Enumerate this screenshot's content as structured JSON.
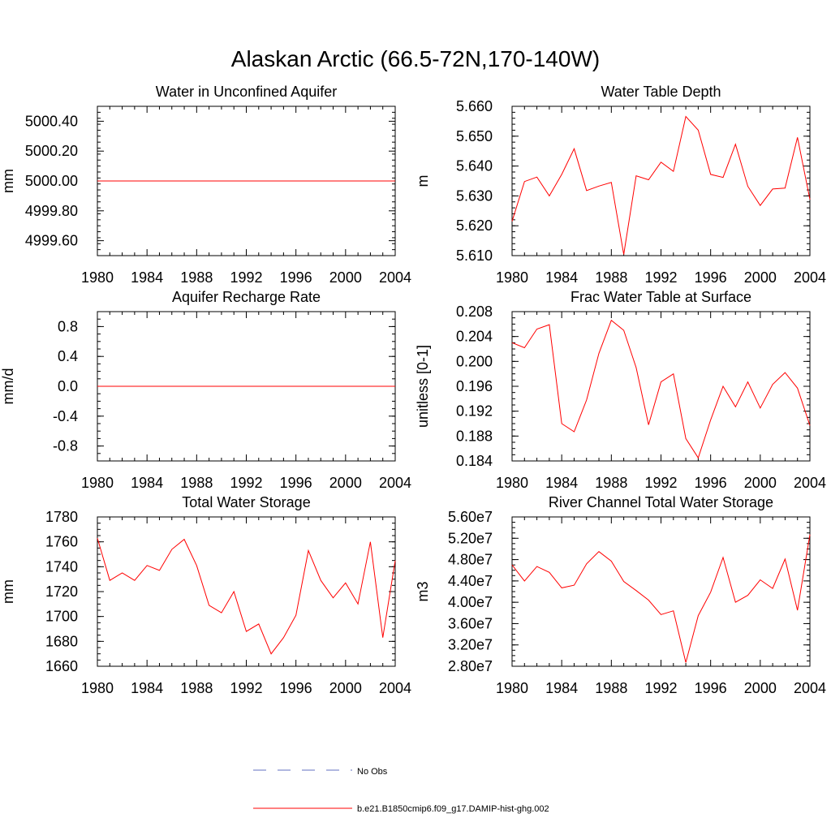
{
  "figure": {
    "title": "Alaskan Arctic (66.5-72N,170-140W)"
  },
  "legend": {
    "entries": [
      {
        "label": "No Obs",
        "color": "#6070c0",
        "style": "dashed"
      },
      {
        "label": "b.e21.B1850cmip6.f09_g17.DAMIP-hist-ghg.002",
        "color": "#ff0000",
        "style": "solid"
      }
    ]
  },
  "chart_data": [
    {
      "type": "line",
      "title": "Water in Unconfined Aquifer",
      "xlabel": "",
      "ylabel": "mm",
      "xlim": [
        1980,
        2004
      ],
      "ylim": [
        4999.5,
        5000.5
      ],
      "xticks": [
        1980,
        1984,
        1988,
        1992,
        1996,
        2000,
        2004
      ],
      "xtick_labels": [
        "1980",
        "1984",
        "1988",
        "1992",
        "1996",
        "2000",
        "2004"
      ],
      "yticks": [
        4999.6,
        4999.8,
        5000.0,
        5000.2,
        5000.4
      ],
      "ytick_labels": [
        "4999.60",
        "4999.80",
        "5000.00",
        "5000.20",
        "5000.40"
      ],
      "yminor_step": 0.04,
      "grid": false,
      "series": [
        {
          "color": "#ff0000",
          "x": [
            1980,
            2004
          ],
          "values": [
            5000.0,
            5000.0
          ]
        }
      ]
    },
    {
      "type": "line",
      "title": "Water Table Depth",
      "xlabel": "",
      "ylabel": "m",
      "xlim": [
        1980,
        2004
      ],
      "ylim": [
        5.61,
        5.66
      ],
      "xticks": [
        1980,
        1984,
        1988,
        1992,
        1996,
        2000,
        2004
      ],
      "xtick_labels": [
        "1980",
        "1984",
        "1988",
        "1992",
        "1996",
        "2000",
        "2004"
      ],
      "yticks": [
        5.61,
        5.62,
        5.63,
        5.64,
        5.65,
        5.66
      ],
      "ytick_labels": [
        "5.610",
        "5.620",
        "5.630",
        "5.640",
        "5.650",
        "5.660"
      ],
      "yminor_step": 0.002,
      "grid": false,
      "series": [
        {
          "color": "#ff0000",
          "x": [
            1980,
            1981,
            1982,
            1983,
            1984,
            1985,
            1986,
            1987,
            1988,
            1989,
            1990,
            1991,
            1992,
            1993,
            1994,
            1995,
            1996,
            1997,
            1998,
            1999,
            2000,
            2001,
            2002,
            2003,
            2004
          ],
          "values": [
            5.6215,
            5.6348,
            5.6363,
            5.63,
            5.6372,
            5.6458,
            5.6318,
            5.6333,
            5.6345,
            5.6104,
            5.6367,
            5.6354,
            5.6413,
            5.6382,
            5.6566,
            5.652,
            5.6372,
            5.6362,
            5.6473,
            5.6332,
            5.6268,
            5.6323,
            5.6326,
            5.6496,
            5.6288
          ]
        }
      ]
    },
    {
      "type": "line",
      "title": "Aquifer Recharge Rate",
      "xlabel": "",
      "ylabel": "mm/d",
      "xlim": [
        1980,
        2004
      ],
      "ylim": [
        -1.0,
        1.0
      ],
      "xticks": [
        1980,
        1984,
        1988,
        1992,
        1996,
        2000,
        2004
      ],
      "xtick_labels": [
        "1980",
        "1984",
        "1988",
        "1992",
        "1996",
        "2000",
        "2004"
      ],
      "yticks": [
        -0.8,
        -0.4,
        0.0,
        0.4,
        0.8
      ],
      "ytick_labels": [
        "-0.8",
        "-0.4",
        "0.0",
        "0.4",
        "0.8"
      ],
      "yminor_step": 0.1,
      "grid": false,
      "series": [
        {
          "color": "#ff0000",
          "x": [
            1980,
            2004
          ],
          "values": [
            0.0,
            0.0
          ]
        }
      ]
    },
    {
      "type": "line",
      "title": "Frac Water Table at Surface",
      "xlabel": "",
      "ylabel": "unitless [0-1]",
      "xlim": [
        1980,
        2004
      ],
      "ylim": [
        0.184,
        0.208
      ],
      "xticks": [
        1980,
        1984,
        1988,
        1992,
        1996,
        2000,
        2004
      ],
      "xtick_labels": [
        "1980",
        "1984",
        "1988",
        "1992",
        "1996",
        "2000",
        "2004"
      ],
      "yticks": [
        0.184,
        0.188,
        0.192,
        0.196,
        0.2,
        0.204,
        0.208
      ],
      "ytick_labels": [
        "0.184",
        "0.188",
        "0.192",
        "0.196",
        "0.200",
        "0.204",
        "0.208"
      ],
      "yminor_step": 0.001,
      "grid": false,
      "series": [
        {
          "color": "#ff0000",
          "x": [
            1980,
            1981,
            1982,
            1983,
            1984,
            1985,
            1986,
            1987,
            1988,
            1989,
            1990,
            1991,
            1992,
            1993,
            1994,
            1995,
            1996,
            1997,
            1998,
            1999,
            2000,
            2001,
            2002,
            2003,
            2004
          ],
          "values": [
            0.203,
            0.2022,
            0.2052,
            0.2059,
            0.19,
            0.1887,
            0.1938,
            0.2013,
            0.2066,
            0.205,
            0.199,
            0.1898,
            0.1967,
            0.198,
            0.1876,
            0.1845,
            0.1906,
            0.196,
            0.1927,
            0.1967,
            0.1925,
            0.1963,
            0.1982,
            0.1957,
            0.1897
          ]
        }
      ]
    },
    {
      "type": "line",
      "title": "Total Water Storage",
      "xlabel": "",
      "ylabel": "mm",
      "xlim": [
        1980,
        2004
      ],
      "ylim": [
        1660,
        1780
      ],
      "xticks": [
        1980,
        1984,
        1988,
        1992,
        1996,
        2000,
        2004
      ],
      "xtick_labels": [
        "1980",
        "1984",
        "1988",
        "1992",
        "1996",
        "2000",
        "2004"
      ],
      "yticks": [
        1660,
        1680,
        1700,
        1720,
        1740,
        1760,
        1780
      ],
      "ytick_labels": [
        "1660",
        "1680",
        "1700",
        "1720",
        "1740",
        "1760",
        "1780"
      ],
      "yminor_step": 5,
      "grid": false,
      "series": [
        {
          "color": "#ff0000",
          "x": [
            1980,
            1981,
            1982,
            1983,
            1984,
            1985,
            1986,
            1987,
            1988,
            1989,
            1990,
            1991,
            1992,
            1993,
            1994,
            1995,
            1996,
            1997,
            1998,
            1999,
            2000,
            2001,
            2002,
            2003,
            2004
          ],
          "values": [
            1763,
            1729,
            1735,
            1729,
            1741,
            1737,
            1754,
            1762,
            1741,
            1709,
            1703,
            1720,
            1688,
            1694,
            1670,
            1683,
            1701,
            1753,
            1729,
            1715,
            1727,
            1710,
            1760,
            1683,
            1745
          ]
        }
      ]
    },
    {
      "type": "line",
      "title": "River Channel Total Water Storage",
      "xlabel": "",
      "ylabel": "m3",
      "xlim": [
        1980,
        2004
      ],
      "ylim": [
        28000000,
        56000000
      ],
      "xticks": [
        1980,
        1984,
        1988,
        1992,
        1996,
        2000,
        2004
      ],
      "xtick_labels": [
        "1980",
        "1984",
        "1988",
        "1992",
        "1996",
        "2000",
        "2004"
      ],
      "yticks": [
        28000000,
        32000000,
        36000000,
        40000000,
        44000000,
        48000000,
        52000000,
        56000000
      ],
      "ytick_labels": [
        "2.80e7",
        "3.20e7",
        "3.60e7",
        "4.00e7",
        "4.40e7",
        "4.80e7",
        "5.20e7",
        "5.60e7"
      ],
      "yminor_step": 1000000,
      "grid": false,
      "series": [
        {
          "color": "#ff0000",
          "x": [
            1980,
            1981,
            1982,
            1983,
            1984,
            1985,
            1986,
            1987,
            1988,
            1989,
            1990,
            1991,
            1992,
            1993,
            1994,
            1995,
            1996,
            1997,
            1998,
            1999,
            2000,
            2001,
            2002,
            2003,
            2004
          ],
          "values": [
            47000000,
            44000000,
            46700000,
            45600000,
            42700000,
            43200000,
            47200000,
            49500000,
            47700000,
            43900000,
            42200000,
            40400000,
            37700000,
            38400000,
            28700000,
            37500000,
            41900000,
            48400000,
            40000000,
            41300000,
            44200000,
            42600000,
            48100000,
            38500000,
            52700000
          ]
        }
      ]
    }
  ]
}
